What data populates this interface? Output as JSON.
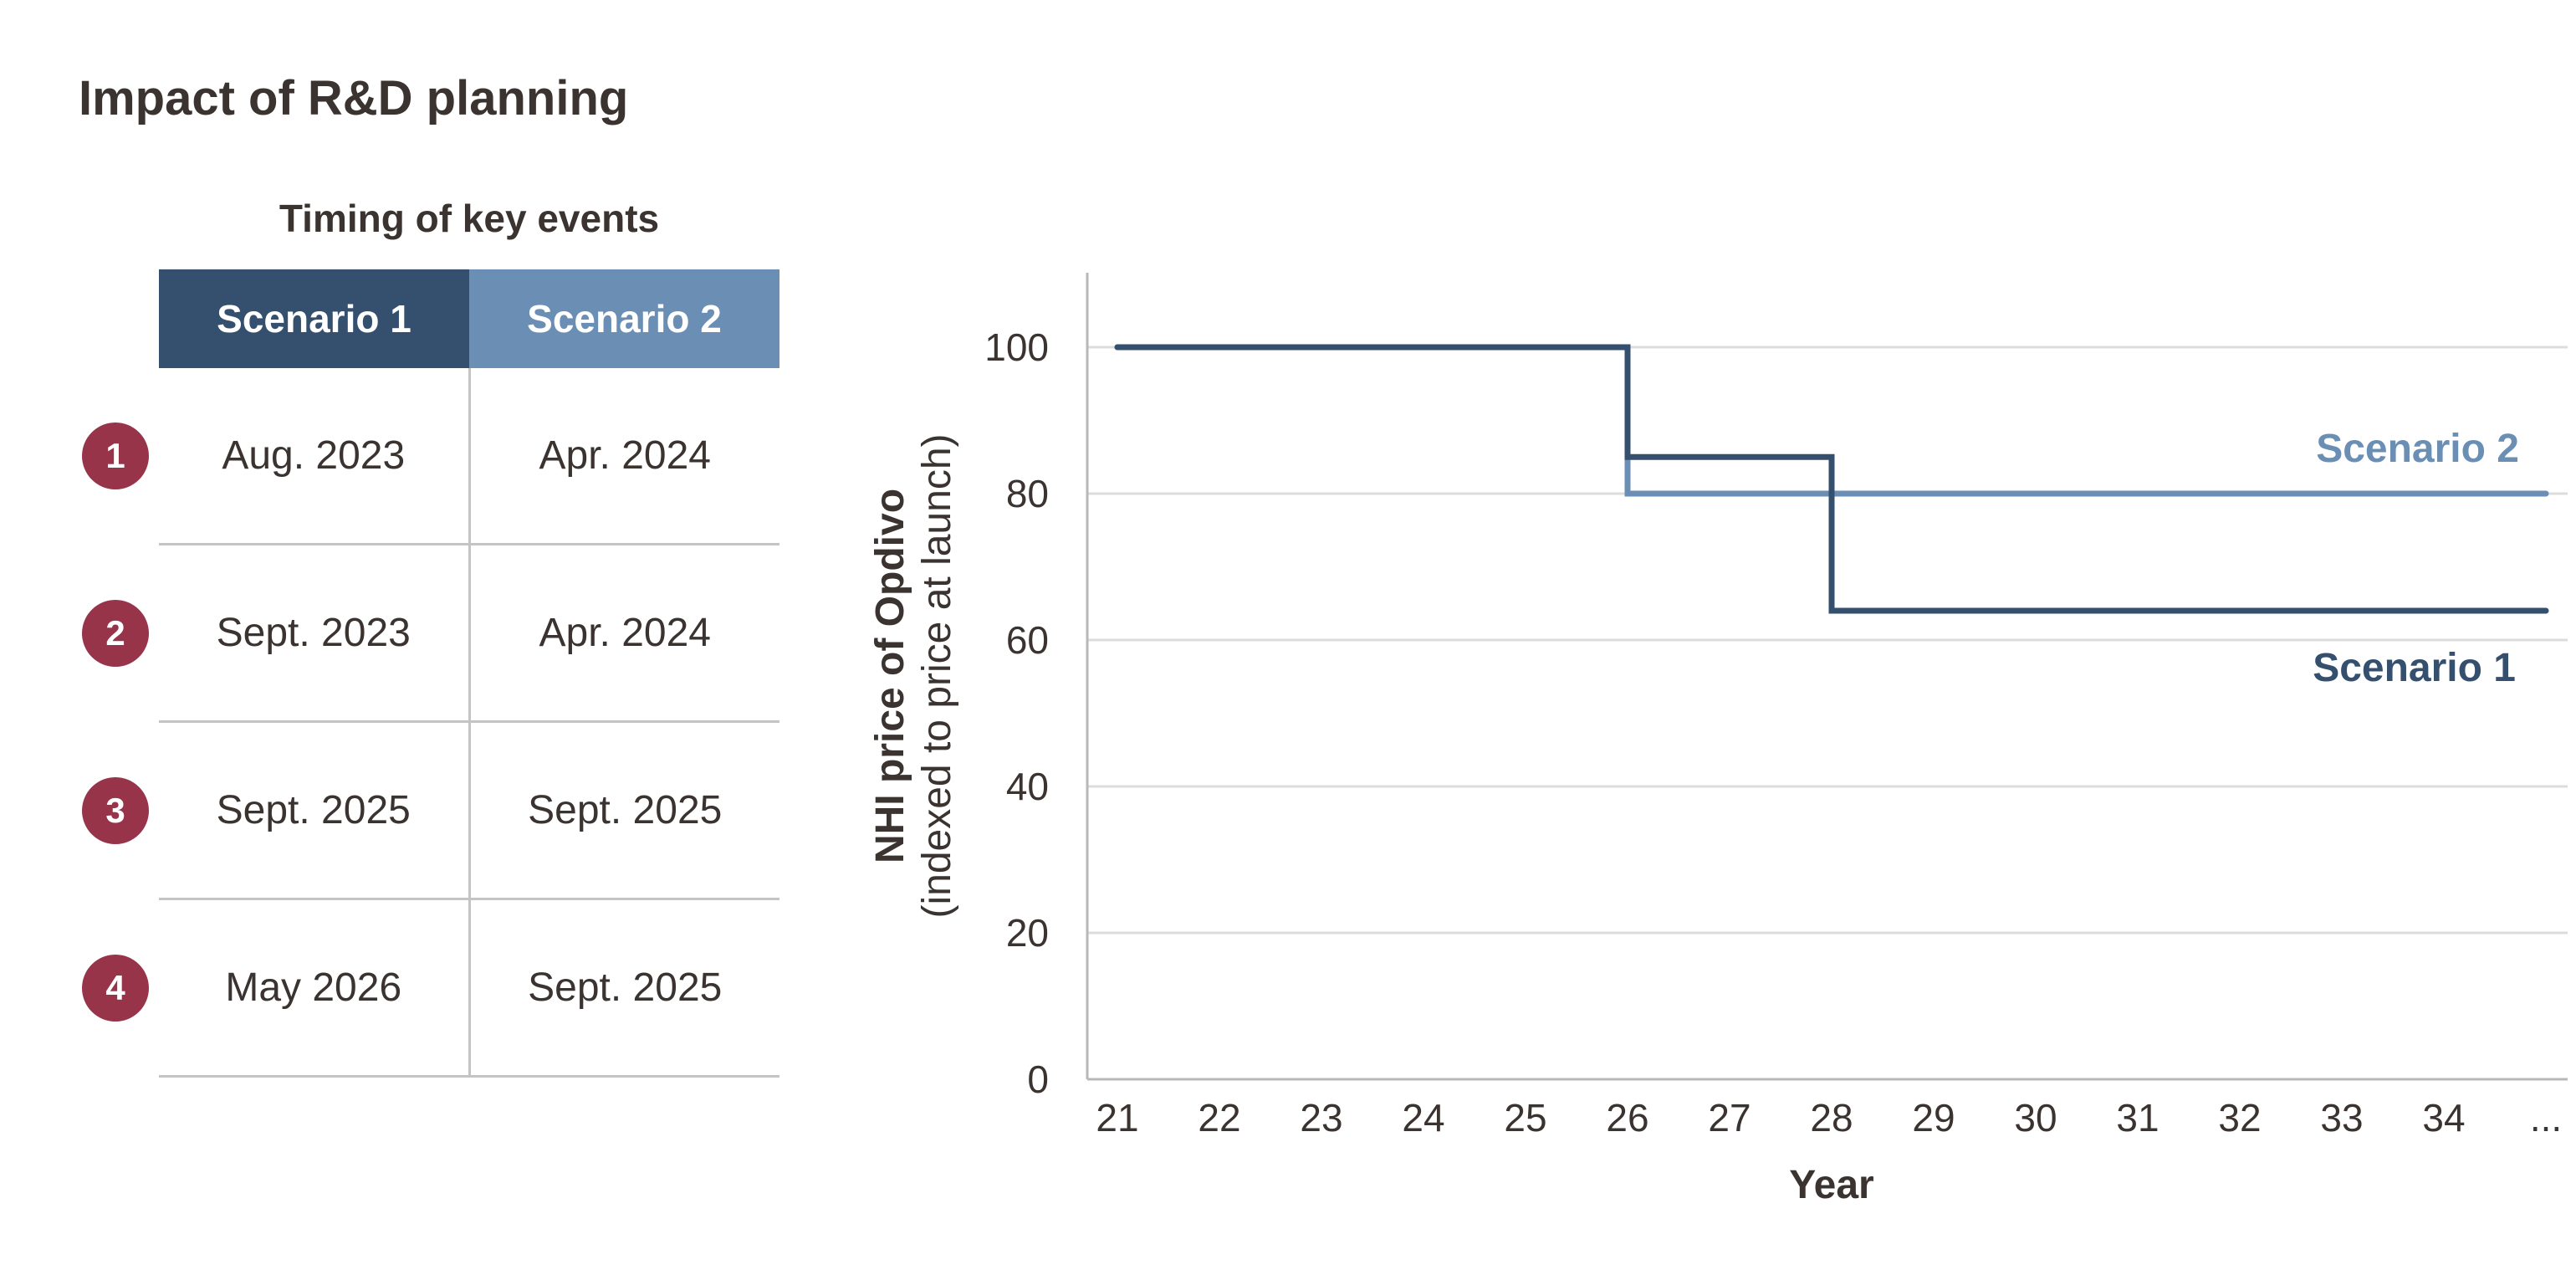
{
  "title": "Impact of R&D planning",
  "table": {
    "title": "Timing of key events",
    "columns": [
      "Scenario 1",
      "Scenario 2"
    ],
    "rows": [
      {
        "badge": "1",
        "s1": "Aug. 2023",
        "s2": "Apr. 2024"
      },
      {
        "badge": "2",
        "s1": "Sept. 2023",
        "s2": "Apr. 2024"
      },
      {
        "badge": "3",
        "s1": "Sept. 2025",
        "s2": "Sept. 2025"
      },
      {
        "badge": "4",
        "s1": "May 2026",
        "s2": "Sept. 2025"
      }
    ]
  },
  "colors": {
    "scenario1": "#35506e",
    "scenario2": "#6b8fb4",
    "badge": "#973449",
    "gridline": "#dcdcdc",
    "axis": "#b8b8b8",
    "text": "#3a3330"
  },
  "chart_data": {
    "type": "line",
    "ylabel_main": "NHI price of Opdivo",
    "ylabel_sub": "(indexed to price at launch)",
    "xlabel": "Year",
    "categories": [
      "21",
      "22",
      "23",
      "24",
      "25",
      "26",
      "27",
      "28",
      "29",
      "30",
      "31",
      "32",
      "33",
      "34",
      "..."
    ],
    "yticks": [
      0,
      20,
      40,
      60,
      80,
      100
    ],
    "ylim": [
      0,
      110
    ],
    "grid": true,
    "step": true,
    "series": [
      {
        "name": "Scenario 1",
        "points": [
          [
            0,
            100
          ],
          [
            5,
            100
          ],
          [
            5,
            85
          ],
          [
            7,
            85
          ],
          [
            7,
            64
          ],
          [
            14,
            64
          ]
        ]
      },
      {
        "name": "Scenario 2",
        "points": [
          [
            0,
            100
          ],
          [
            5,
            100
          ],
          [
            5,
            80
          ],
          [
            14,
            80
          ]
        ]
      }
    ]
  }
}
